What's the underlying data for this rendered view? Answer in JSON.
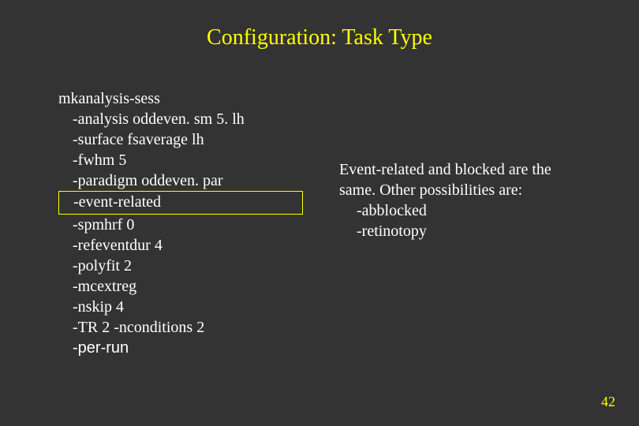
{
  "title": "Configuration: Task Type",
  "command": {
    "name": "mkanalysis-sess",
    "flags": [
      "-analysis oddeven. sm 5. lh",
      "-surface fsaverage lh",
      "-fwhm 5",
      "-paradigm oddeven. par"
    ],
    "highlighted": "-event-related",
    "flags_after": [
      "-spmhrf 0",
      "-refeventdur 4",
      "-polyfit 2",
      "-mcextreg",
      "-nskip 4",
      "-TR 2 -nconditions 2"
    ],
    "last_flag": "-per-run"
  },
  "explanation": {
    "line1": "Event-related and blocked are the",
    "line2": "same. Other possibilities are:",
    "option1": "-abblocked",
    "option2": "-retinotopy"
  },
  "page_number": "42",
  "colors": {
    "background": "#333333",
    "title": "#ffff00",
    "text": "#ffffff",
    "highlight_border": "#ffff00",
    "page_number": "#ffff00"
  }
}
